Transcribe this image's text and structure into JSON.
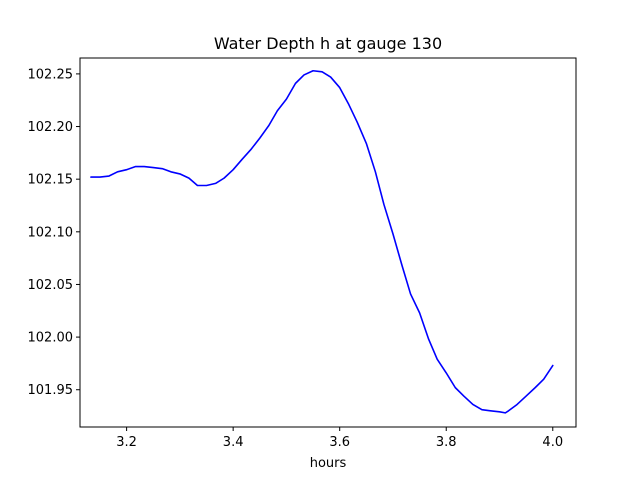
{
  "chart_data": {
    "type": "line",
    "title": "Water Depth h at gauge 130",
    "xlabel": "hours",
    "ylabel": "",
    "xlim": [
      3.1125,
      4.0436
    ],
    "ylim": [
      101.9146,
      102.2651
    ],
    "xticks": [
      3.2,
      3.4,
      3.6,
      3.8,
      4.0
    ],
    "xtick_labels": [
      "3.2",
      "3.4",
      "3.6",
      "3.8",
      "4.0"
    ],
    "yticks": [
      101.95,
      102.0,
      102.05,
      102.1,
      102.15,
      102.2,
      102.25
    ],
    "ytick_labels": [
      "101.95",
      "102.00",
      "102.05",
      "102.10",
      "102.15",
      "102.20",
      "102.25"
    ],
    "grid": false,
    "series": [
      {
        "color": "#0000ff",
        "x": [
          3.133,
          3.15,
          3.167,
          3.183,
          3.2,
          3.217,
          3.233,
          3.25,
          3.267,
          3.283,
          3.3,
          3.317,
          3.333,
          3.35,
          3.367,
          3.383,
          3.4,
          3.417,
          3.433,
          3.45,
          3.467,
          3.483,
          3.5,
          3.517,
          3.533,
          3.55,
          3.567,
          3.583,
          3.6,
          3.617,
          3.633,
          3.65,
          3.667,
          3.683,
          3.7,
          3.717,
          3.733,
          3.75,
          3.767,
          3.783,
          3.8,
          3.817,
          3.833,
          3.85,
          3.867,
          3.883,
          3.9,
          3.911,
          3.917,
          3.933,
          3.95,
          3.967,
          3.983,
          4.0
        ],
        "y": [
          102.152,
          102.152,
          102.153,
          102.157,
          102.159,
          102.162,
          102.162,
          102.161,
          102.16,
          102.157,
          102.155,
          102.151,
          102.144,
          102.144,
          102.146,
          102.151,
          102.159,
          102.169,
          102.178,
          102.189,
          102.201,
          102.215,
          102.226,
          102.241,
          102.249,
          102.253,
          102.252,
          102.247,
          102.237,
          102.221,
          102.204,
          102.184,
          102.157,
          102.126,
          102.098,
          102.068,
          102.041,
          102.023,
          101.998,
          101.979,
          101.966,
          101.952,
          101.944,
          101.936,
          101.931,
          101.93,
          101.929,
          101.928,
          101.93,
          101.936,
          101.944,
          101.952,
          101.96,
          101.973
        ]
      }
    ]
  }
}
